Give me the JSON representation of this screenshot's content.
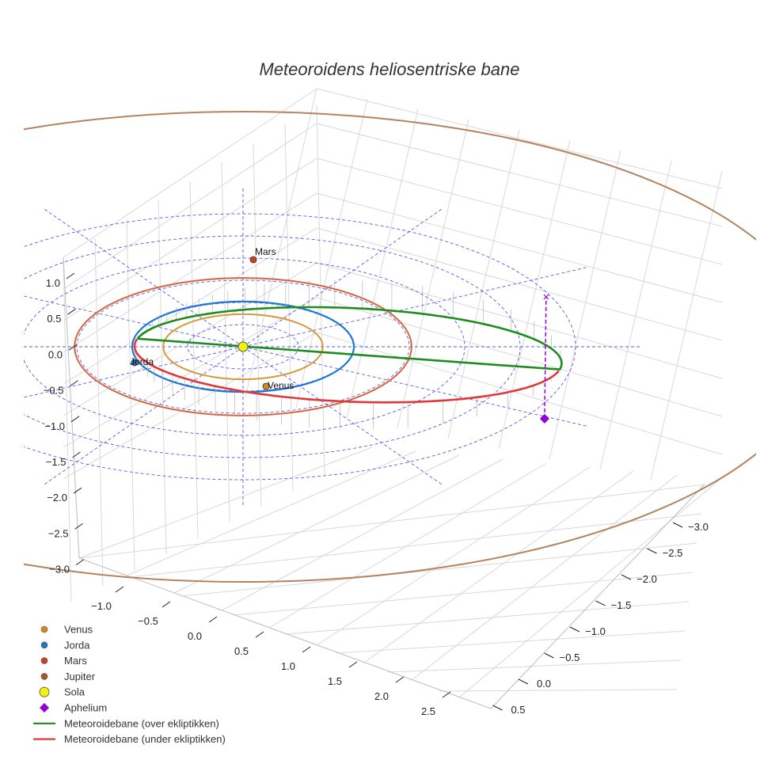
{
  "chart_data": {
    "type": "line",
    "subtype": "3d-orbit-plot",
    "title": "Meteoroidens heliosentriske bane",
    "axes": {
      "x": {
        "ticks": [
          "−1.0",
          "−0.5",
          "0.0",
          "0.5",
          "1.0",
          "1.5",
          "2.0",
          "2.5"
        ]
      },
      "y": {
        "ticks": [
          "−3.0",
          "−2.5",
          "−2.0",
          "−1.5",
          "−1.0",
          "−0.5",
          "0.0",
          "0.5"
        ]
      },
      "z": {
        "ticks": [
          "1.0",
          "0.5",
          "0.0",
          "−0.5",
          "−1.0",
          "−1.5",
          "−2.0",
          "−2.5",
          "−3.0"
        ]
      }
    },
    "grid": true,
    "ecliptic_grid": {
      "rings_au": [
        0.5,
        1.0,
        1.5,
        2.0,
        2.5,
        3.0
      ],
      "style": "dashed"
    },
    "orbits": [
      {
        "name": "Venus",
        "semi_major_axis_au": 0.72,
        "color": "#d49a3a"
      },
      {
        "name": "Jorda",
        "semi_major_axis_au": 1.0,
        "color": "#1f77d4"
      },
      {
        "name": "Mars",
        "semi_major_axis_au": 1.52,
        "color": "#d9643c"
      },
      {
        "name": "Jupiter",
        "semi_major_axis_au": 5.2,
        "color": "#b5835f"
      }
    ],
    "bodies": [
      {
        "name": "Venus",
        "label": "Venus",
        "color": "#d4891a"
      },
      {
        "name": "Jorda",
        "label": "Jorda",
        "color": "#1f77b4"
      },
      {
        "name": "Mars",
        "label": "Mars",
        "color": "#c8431c"
      },
      {
        "name": "Sola",
        "label": "",
        "color": "#f5f20a"
      }
    ],
    "meteoroid": {
      "perihelion_au": 0.97,
      "aphelion_au": 2.9,
      "above_color": "#1e8c1e",
      "below_color": "#e03838",
      "aphelion_marker_color": "#9400d3"
    },
    "legend": {
      "placement": "bottom-left",
      "entries": [
        {
          "label": "Venus",
          "marker": "circle",
          "color": "#d4891a"
        },
        {
          "label": "Jorda",
          "marker": "circle",
          "color": "#1f77b4"
        },
        {
          "label": "Mars",
          "marker": "circle",
          "color": "#c8431c"
        },
        {
          "label": "Jupiter",
          "marker": "circle",
          "color": "#a0582e"
        },
        {
          "label": "Sola",
          "marker": "big-circle",
          "color": "#f5f20a"
        },
        {
          "label": "Aphelium",
          "marker": "diamond",
          "color": "#9400d3"
        },
        {
          "label": "Meteoroidebane (over ekliptikken)",
          "marker": "line",
          "color": "#1e8c1e"
        },
        {
          "label": "Meteoroidebane (under ekliptikken)",
          "marker": "line",
          "color": "#e03838"
        }
      ]
    }
  }
}
